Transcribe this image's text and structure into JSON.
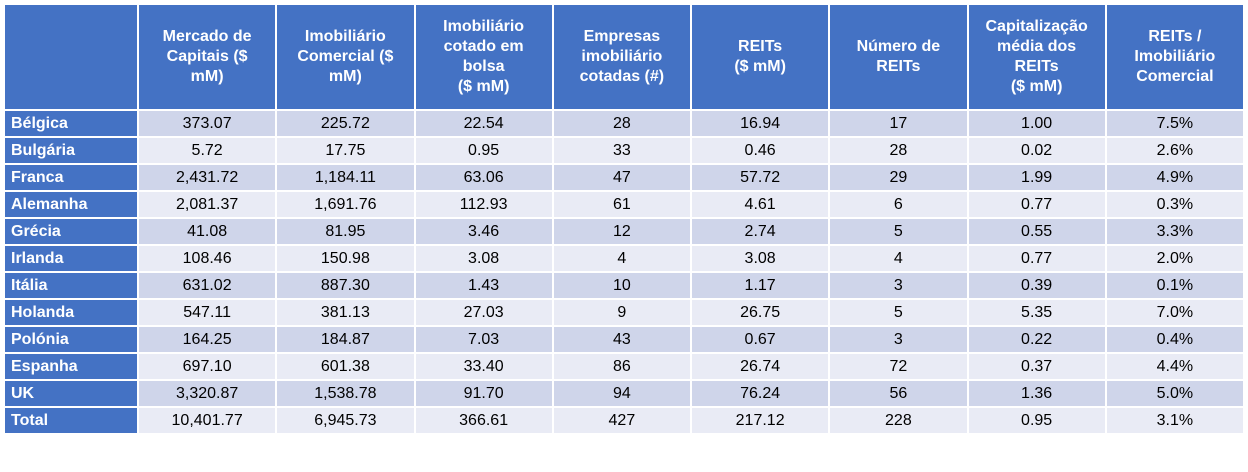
{
  "table": {
    "header": [
      "",
      "Mercado de\nCapitais ($\nmM)",
      "Imobiliário\nComercial ($\nmM)",
      "Imobiliário\ncotado em\nbolsa\n($ mM)",
      "Empresas\nimobiliário\ncotadas (#)",
      "REITs\n($ mM)",
      "Número de\nREITs",
      "Capitalização\nmédia dos\nREITs\n($ mM)",
      "REITs /\nImobiliário\nComercial"
    ],
    "rows": [
      [
        "Bélgica",
        "373.07",
        "225.72",
        "22.54",
        "28",
        "16.94",
        "17",
        "1.00",
        "7.5%"
      ],
      [
        "Bulgária",
        "5.72",
        "17.75",
        "0.95",
        "33",
        "0.46",
        "28",
        "0.02",
        "2.6%"
      ],
      [
        "Franca",
        "2,431.72",
        "1,184.11",
        "63.06",
        "47",
        "57.72",
        "29",
        "1.99",
        "4.9%"
      ],
      [
        "Alemanha",
        "2,081.37",
        "1,691.76",
        "112.93",
        "61",
        "4.61",
        "6",
        "0.77",
        "0.3%"
      ],
      [
        "Grécia",
        "41.08",
        "81.95",
        "3.46",
        "12",
        "2.74",
        "5",
        "0.55",
        "3.3%"
      ],
      [
        "Irlanda",
        "108.46",
        "150.98",
        "3.08",
        "4",
        "3.08",
        "4",
        "0.77",
        "2.0%"
      ],
      [
        "Itália",
        "631.02",
        "887.30",
        "1.43",
        "10",
        "1.17",
        "3",
        "0.39",
        "0.1%"
      ],
      [
        "Holanda",
        "547.11",
        "381.13",
        "27.03",
        "9",
        "26.75",
        "5",
        "5.35",
        "7.0%"
      ],
      [
        "Polónia",
        "164.25",
        "184.87",
        "7.03",
        "43",
        "0.67",
        "3",
        "0.22",
        "0.4%"
      ],
      [
        "Espanha",
        "697.10",
        "601.38",
        "33.40",
        "86",
        "26.74",
        "72",
        "0.37",
        "4.4%"
      ],
      [
        "UK",
        "3,320.87",
        "1,538.78",
        "91.70",
        "94",
        "76.24",
        "56",
        "1.36",
        "5.0%"
      ],
      [
        "Total",
        "10,401.77",
        "6,945.73",
        "366.61",
        "427",
        "217.12",
        "228",
        "0.95",
        "3.1%"
      ]
    ]
  }
}
